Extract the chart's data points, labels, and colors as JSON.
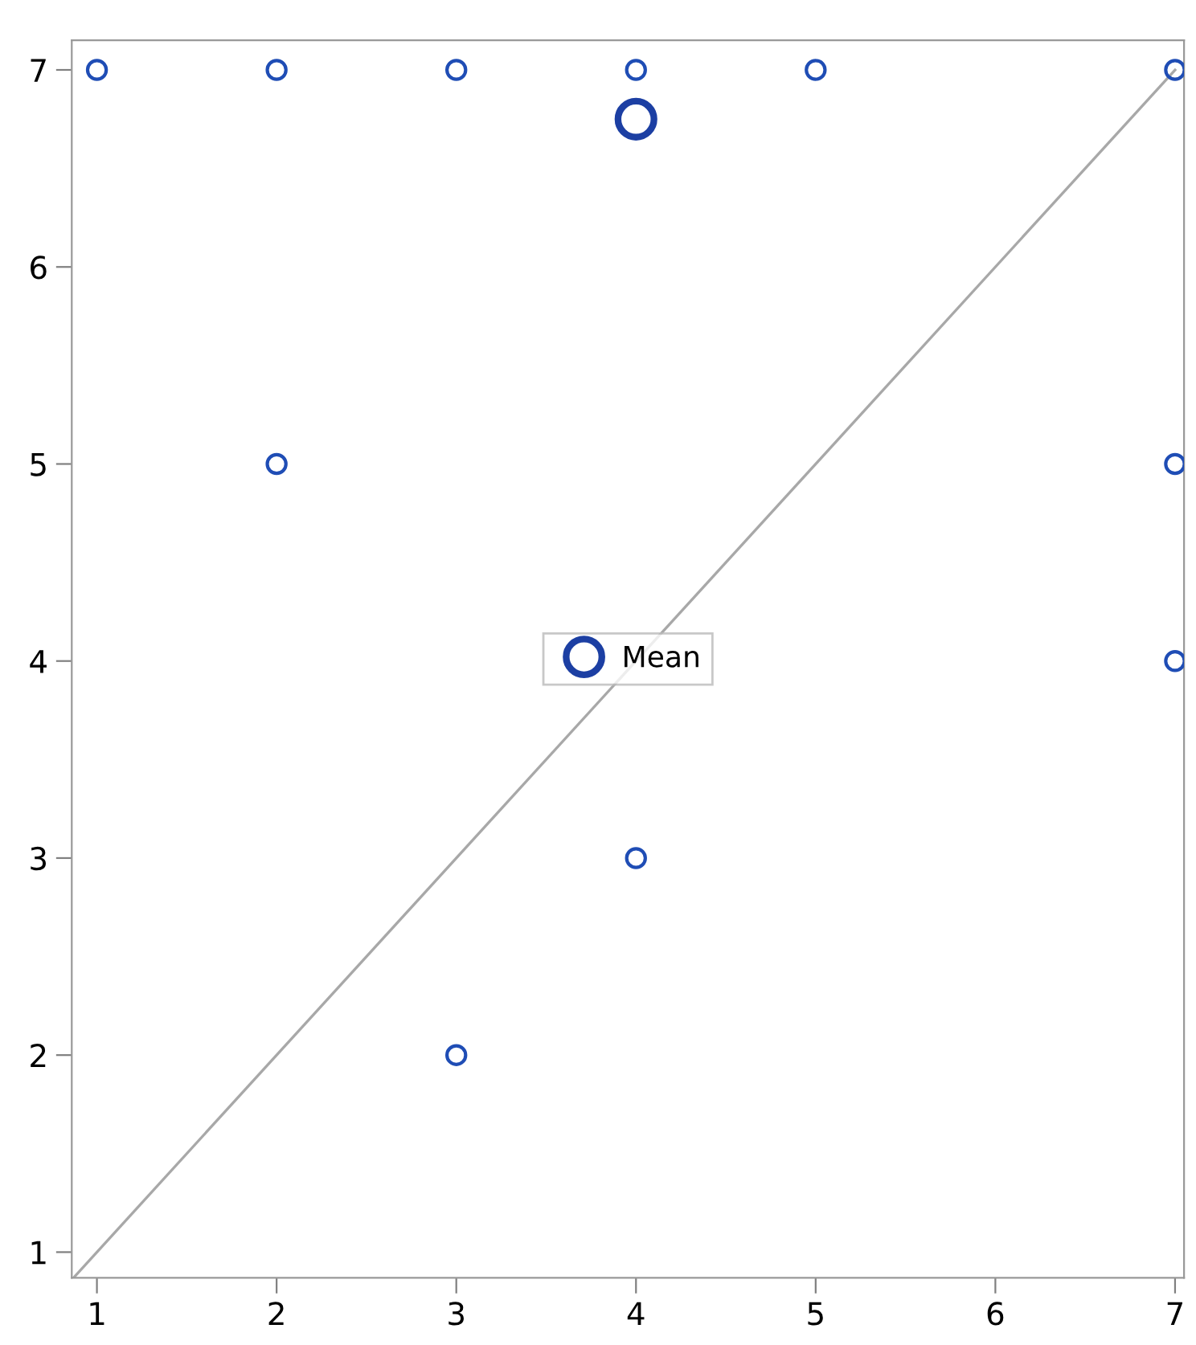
{
  "chart_data": {
    "type": "scatter",
    "xlim": [
      0.86,
      7.05
    ],
    "ylim": [
      0.87,
      7.15
    ],
    "xticks": [
      1,
      2,
      3,
      4,
      5,
      6,
      7
    ],
    "yticks": [
      1,
      2,
      3,
      4,
      5,
      6,
      7
    ],
    "grid": false,
    "legend": "center",
    "marker": "circle",
    "series": [
      {
        "type": "line",
        "marker": "none",
        "color": "#a8a8a8",
        "x": [
          0.87,
          7
        ],
        "values": [
          0.87,
          7
        ]
      },
      {
        "color": "#1f4db5",
        "x": [
          1,
          2,
          3,
          4,
          5,
          7,
          2,
          7,
          7,
          4,
          3
        ],
        "values": [
          7,
          7,
          7,
          7,
          7,
          7,
          5,
          5,
          4,
          3,
          2
        ]
      },
      {
        "type": "scatter",
        "name": "Mean",
        "color": "#1c3fa3",
        "x": [
          4
        ],
        "values": [
          6.75
        ]
      }
    ]
  }
}
